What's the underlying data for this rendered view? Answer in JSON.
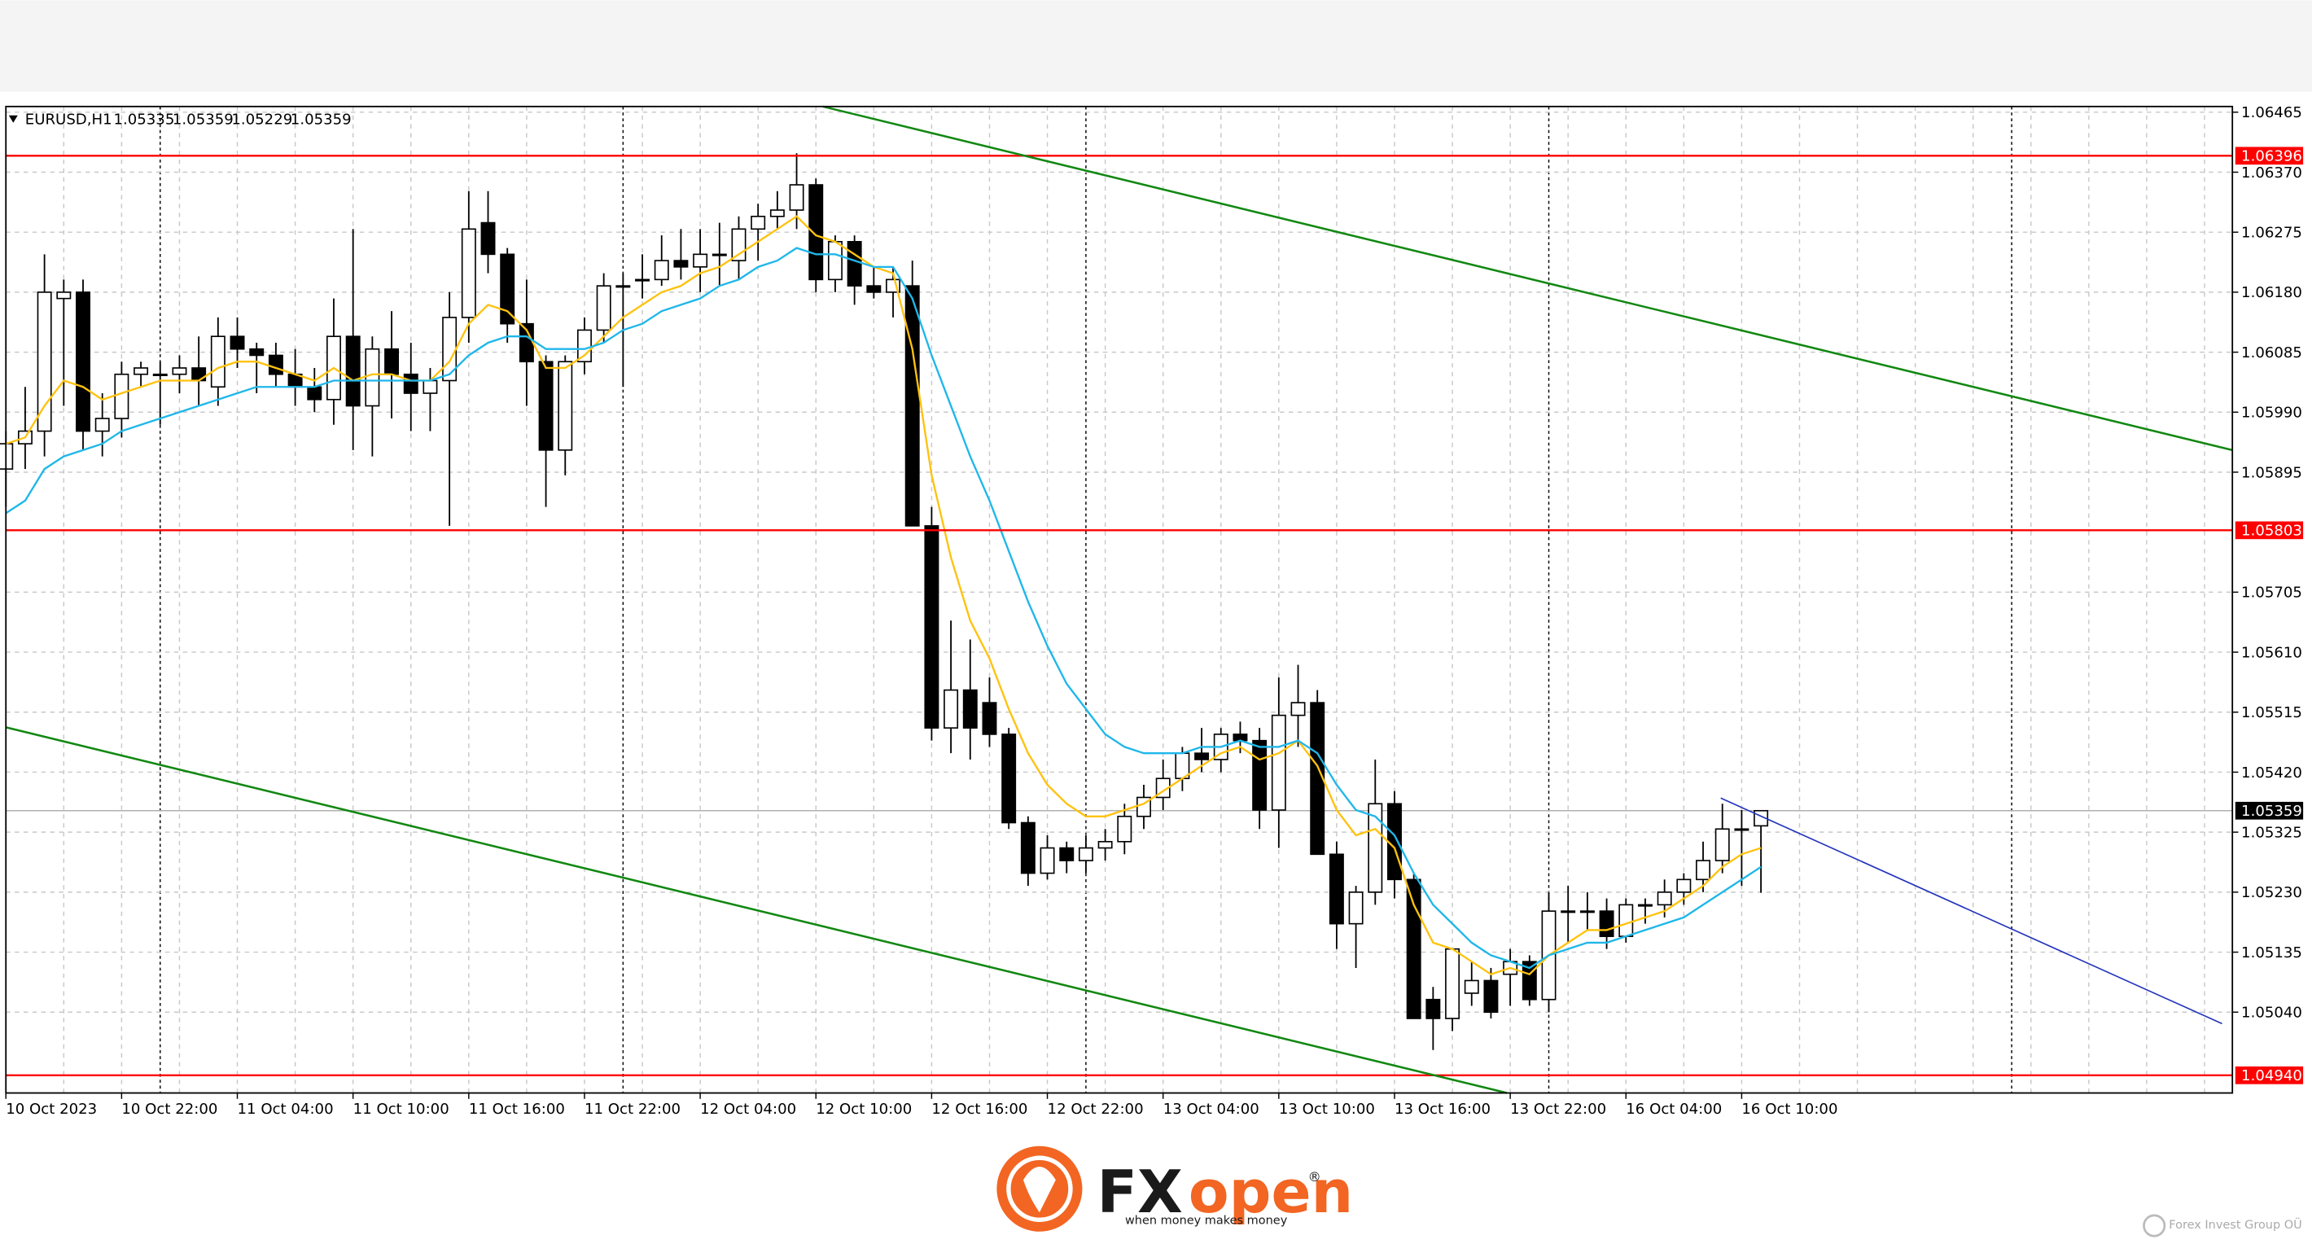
{
  "chart_data": {
    "type": "candlestick",
    "symbol": "EURUSD,H1",
    "categories": [
      "10 Oct 2023",
      null,
      null,
      null,
      null,
      null,
      "10 Oct 22:00",
      null,
      null,
      null,
      null,
      null,
      "11 Oct 04:00",
      null,
      null,
      null,
      null,
      null,
      "11 Oct 10:00",
      null,
      null,
      null,
      null,
      null,
      "11 Oct 16:00",
      null,
      null,
      null,
      null,
      null,
      "11 Oct 22:00",
      null,
      null,
      null,
      null,
      null,
      "12 Oct 04:00",
      null,
      null,
      null,
      null,
      null,
      "12 Oct 10:00",
      null,
      null,
      null,
      null,
      null,
      "12 Oct 16:00",
      null,
      null,
      null,
      null,
      null,
      "12 Oct 22:00",
      null,
      null,
      null,
      null,
      null,
      "13 Oct 04:00",
      null,
      null,
      null,
      null,
      null,
      "13 Oct 10:00",
      null,
      null,
      null,
      null,
      null,
      "13 Oct 16:00",
      null,
      null,
      null,
      null,
      null,
      "13 Oct 22:00",
      null,
      null,
      null,
      null,
      null,
      "16 Oct 04:00",
      null,
      null,
      null,
      null,
      null,
      "16 Oct 10:00",
      null
    ],
    "open": [
      1.059,
      1.0594,
      1.0596,
      1.0617,
      1.0618,
      1.0596,
      1.0598,
      1.0605,
      1.0605,
      1.0605,
      1.0606,
      1.0603,
      1.0611,
      1.0609,
      1.0608,
      1.0605,
      1.0603,
      1.0601,
      1.0611,
      1.06,
      1.0609,
      1.0605,
      1.0602,
      1.0604,
      1.0614,
      1.0629,
      1.0624,
      1.0613,
      1.0607,
      1.0593,
      1.0607,
      1.0612,
      1.0619,
      1.062,
      1.062,
      1.0623,
      1.0622,
      1.0624,
      1.0623,
      1.0628,
      1.063,
      1.0631,
      1.0635,
      1.062,
      1.0626,
      1.0619,
      1.0618,
      1.0619,
      1.0581,
      1.0549,
      1.0555,
      1.0553,
      1.0548,
      1.0534,
      1.0526,
      1.053,
      1.0528,
      1.053,
      1.0531,
      1.0535,
      1.0538,
      1.0541,
      1.0545,
      1.0544,
      1.0548,
      1.0547,
      1.0536,
      1.0551,
      1.0553,
      1.0529,
      1.0518,
      1.0523,
      1.0537,
      1.0525,
      1.0506,
      1.0503,
      1.0507,
      1.0509,
      1.051,
      1.0512,
      1.0506,
      1.052,
      1.052,
      1.052,
      1.0516,
      1.0521,
      1.0521,
      1.0523,
      1.0525,
      1.0528,
      1.0533,
      1.05335
    ],
    "high": [
      1.0596,
      1.0603,
      1.0624,
      1.062,
      1.062,
      1.0602,
      1.0607,
      1.0607,
      1.0607,
      1.0608,
      1.0611,
      1.0614,
      1.0614,
      1.061,
      1.061,
      1.0609,
      1.0606,
      1.0617,
      1.0628,
      1.0611,
      1.0615,
      1.061,
      1.0606,
      1.0618,
      1.0634,
      1.0634,
      1.0625,
      1.062,
      1.0608,
      1.0608,
      1.0614,
      1.0621,
      1.0621,
      1.0624,
      1.0627,
      1.0628,
      1.0628,
      1.0629,
      1.063,
      1.0632,
      1.0634,
      1.064,
      1.0636,
      1.0627,
      1.0627,
      1.0622,
      1.0622,
      1.0623,
      1.0584,
      1.0566,
      1.0563,
      1.0557,
      1.0549,
      1.0535,
      1.0532,
      1.0531,
      1.0532,
      1.0533,
      1.0537,
      1.054,
      1.0544,
      1.0546,
      1.0549,
      1.0549,
      1.055,
      1.0549,
      1.0557,
      1.0559,
      1.0555,
      1.0531,
      1.0524,
      1.0544,
      1.0539,
      1.0526,
      1.0508,
      1.0514,
      1.0512,
      1.0511,
      1.0514,
      1.0513,
      1.0523,
      1.0524,
      1.0523,
      1.0522,
      1.0522,
      1.0522,
      1.0525,
      1.0526,
      1.0531,
      1.0537,
      1.0536,
      1.05359
    ],
    "low": [
      1.0584,
      1.059,
      1.0592,
      1.06,
      1.0593,
      1.0592,
      1.0595,
      1.0603,
      1.0597,
      1.0602,
      1.06,
      1.06,
      1.0606,
      1.0602,
      1.0603,
      1.06,
      1.0599,
      1.0597,
      1.0593,
      1.0592,
      1.0598,
      1.0596,
      1.0596,
      1.0581,
      1.061,
      1.0621,
      1.061,
      1.06,
      1.0584,
      1.0589,
      1.0605,
      1.061,
      1.0603,
      1.0617,
      1.0619,
      1.062,
      1.0618,
      1.0619,
      1.062,
      1.0623,
      1.0628,
      1.0628,
      1.0618,
      1.0618,
      1.0616,
      1.0617,
      1.0614,
      1.0581,
      1.0547,
      1.0545,
      1.0544,
      1.0546,
      1.0533,
      1.0524,
      1.0525,
      1.0526,
      1.0526,
      1.0528,
      1.0529,
      1.0533,
      1.0536,
      1.0539,
      1.0542,
      1.0542,
      1.0545,
      1.0533,
      1.053,
      1.0546,
      1.0529,
      1.0514,
      1.0511,
      1.0521,
      1.0522,
      1.0503,
      1.0498,
      1.0501,
      1.0505,
      1.0503,
      1.0505,
      1.0505,
      1.0504,
      1.0515,
      1.0517,
      1.0514,
      1.0515,
      1.0518,
      1.0519,
      1.0521,
      1.0523,
      1.0526,
      1.0524,
      1.05229
    ],
    "close": [
      1.0594,
      1.0596,
      1.0618,
      1.0618,
      1.0596,
      1.0598,
      1.0605,
      1.0606,
      1.0605,
      1.0606,
      1.0604,
      1.0611,
      1.0609,
      1.0608,
      1.0605,
      1.0603,
      1.0601,
      1.0611,
      1.06,
      1.0609,
      1.0605,
      1.0602,
      1.0604,
      1.0614,
      1.0628,
      1.0624,
      1.0613,
      1.0607,
      1.0593,
      1.0607,
      1.0612,
      1.0619,
      1.0619,
      1.062,
      1.0623,
      1.0622,
      1.0624,
      1.0624,
      1.0628,
      1.063,
      1.0631,
      1.0635,
      1.062,
      1.0626,
      1.0619,
      1.0618,
      1.062,
      1.0581,
      1.0549,
      1.0555,
      1.0549,
      1.0548,
      1.0534,
      1.0526,
      1.053,
      1.0528,
      1.053,
      1.0531,
      1.0535,
      1.0538,
      1.0541,
      1.0545,
      1.0544,
      1.0548,
      1.0547,
      1.0536,
      1.0551,
      1.0553,
      1.0529,
      1.0518,
      1.0523,
      1.0537,
      1.0525,
      1.0503,
      1.0503,
      1.0514,
      1.0509,
      1.0504,
      1.0512,
      1.0506,
      1.052,
      1.052,
      1.052,
      1.0516,
      1.0521,
      1.0521,
      1.0523,
      1.0525,
      1.0528,
      1.0533,
      1.0533,
      1.05359
    ],
    "lines": [
      {
        "color": "#ffc20e",
        "values": [
          1.0594,
          1.0595,
          1.06,
          1.0604,
          1.0603,
          1.0601,
          1.0602,
          1.0603,
          1.0604,
          1.0604,
          1.0604,
          1.0606,
          1.0607,
          1.0607,
          1.0606,
          1.0605,
          1.0604,
          1.0606,
          1.0604,
          1.0605,
          1.0605,
          1.0604,
          1.0604,
          1.0607,
          1.0613,
          1.0616,
          1.0615,
          1.0612,
          1.0606,
          1.0606,
          1.0608,
          1.0611,
          1.0614,
          1.0616,
          1.0618,
          1.0619,
          1.0621,
          1.0622,
          1.0624,
          1.0626,
          1.0628,
          1.063,
          1.0627,
          1.0626,
          1.0624,
          1.0622,
          1.0621,
          1.0609,
          1.0589,
          1.0576,
          1.0566,
          1.056,
          1.0552,
          1.0545,
          1.054,
          1.0537,
          1.0535,
          1.0535,
          1.0536,
          1.0537,
          1.0539,
          1.0541,
          1.0543,
          1.0545,
          1.0546,
          1.0544,
          1.0545,
          1.0547,
          1.0543,
          1.0536,
          1.0532,
          1.0533,
          1.053,
          1.0521,
          1.0515,
          1.0514,
          1.0512,
          1.051,
          1.0511,
          1.051,
          1.0513,
          1.0515,
          1.0517,
          1.0517,
          1.0518,
          1.0519,
          1.052,
          1.0522,
          1.0524,
          1.0527,
          1.0529,
          1.053
        ]
      },
      {
        "color": "#1fb7ea",
        "values": [
          1.0583,
          1.0585,
          1.059,
          1.0592,
          1.0593,
          1.0594,
          1.0596,
          1.0597,
          1.0598,
          1.0599,
          1.06,
          1.0601,
          1.0602,
          1.0603,
          1.0603,
          1.0603,
          1.0603,
          1.0604,
          1.0604,
          1.0604,
          1.0604,
          1.0604,
          1.0604,
          1.0605,
          1.0608,
          1.061,
          1.0611,
          1.0611,
          1.0609,
          1.0609,
          1.0609,
          1.061,
          1.0612,
          1.0613,
          1.0615,
          1.0616,
          1.0617,
          1.0619,
          1.062,
          1.0622,
          1.0623,
          1.0625,
          1.0624,
          1.0624,
          1.0623,
          1.0622,
          1.0622,
          1.0617,
          1.0608,
          1.06,
          1.0592,
          1.0585,
          1.0577,
          1.0569,
          1.0562,
          1.0556,
          1.0552,
          1.0548,
          1.0546,
          1.0545,
          1.0545,
          1.0545,
          1.0546,
          1.0546,
          1.0547,
          1.0546,
          1.0546,
          1.0547,
          1.0545,
          1.054,
          1.0536,
          1.0535,
          1.0532,
          1.0526,
          1.0521,
          1.0518,
          1.0515,
          1.0513,
          1.0512,
          1.0511,
          1.0513,
          1.0514,
          1.0515,
          1.0515,
          1.0516,
          1.0517,
          1.0518,
          1.0519,
          1.0521,
          1.0523,
          1.0525,
          1.0527
        ]
      }
    ],
    "levels": [
      1.06396,
      1.05803,
      {
        "value": 1.0494,
        "label": "1.04940"
      }
    ],
    "level_color": "#ff0000",
    "ylim": [
      1.04912,
      1.06474
    ],
    "yticks": [
      1.06465,
      {
        "value": 1.0637,
        "label": "1.06370"
      },
      1.06275,
      {
        "value": 1.0618,
        "label": "1.06180"
      },
      1.06085,
      {
        "value": 1.0599,
        "label": "1.05990"
      },
      1.05895,
      1.05705,
      {
        "value": 1.0561,
        "label": "1.05610"
      },
      1.05515,
      {
        "value": 1.0542,
        "label": "1.05420"
      },
      1.05325,
      {
        "value": 1.0523,
        "label": "1.05230"
      },
      1.05135,
      {
        "value": 1.0504,
        "label": "1.05040"
      }
    ],
    "grid": true
  },
  "branding": {
    "fx": "FX",
    "open": "open",
    "reg": "®",
    "tagline": "when money makes money",
    "watermark": "Forex Invest Group OÜ"
  }
}
